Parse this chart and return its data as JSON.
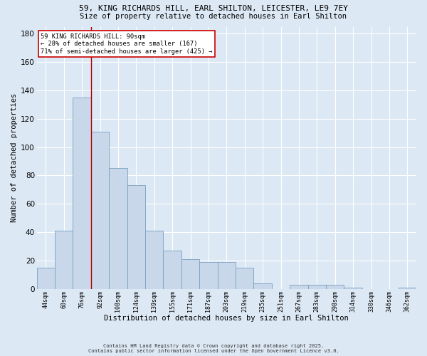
{
  "title1": "59, KING RICHARDS HILL, EARL SHILTON, LEICESTER, LE9 7EY",
  "title2": "Size of property relative to detached houses in Earl Shilton",
  "xlabel": "Distribution of detached houses by size in Earl Shilton",
  "ylabel": "Number of detached properties",
  "categories": [
    "44sqm",
    "60sqm",
    "76sqm",
    "92sqm",
    "108sqm",
    "124sqm",
    "139sqm",
    "155sqm",
    "171sqm",
    "187sqm",
    "203sqm",
    "219sqm",
    "235sqm",
    "251sqm",
    "267sqm",
    "283sqm",
    "298sqm",
    "314sqm",
    "330sqm",
    "346sqm",
    "362sqm"
  ],
  "values": [
    15,
    41,
    135,
    111,
    85,
    73,
    41,
    27,
    21,
    19,
    19,
    15,
    4,
    0,
    3,
    3,
    3,
    1,
    0,
    0,
    1
  ],
  "bar_color": "#c8d8ea",
  "bar_edge_color": "#7aa0c0",
  "bg_color": "#dce8f4",
  "grid_color": "#ffffff",
  "vline_x": 2.5,
  "vline_color": "#aa0000",
  "annotation_line1": "59 KING RICHARDS HILL: 90sqm",
  "annotation_line2": "← 28% of detached houses are smaller (167)",
  "annotation_line3": "71% of semi-detached houses are larger (425) →",
  "annotation_box_facecolor": "#ffffff",
  "annotation_box_edgecolor": "#cc0000",
  "footer1": "Contains HM Land Registry data © Crown copyright and database right 2025.",
  "footer2": "Contains public sector information licensed under the Open Government Licence v3.0.",
  "ylim": [
    0,
    185
  ],
  "yticks": [
    0,
    20,
    40,
    60,
    80,
    100,
    120,
    140,
    160,
    180
  ]
}
